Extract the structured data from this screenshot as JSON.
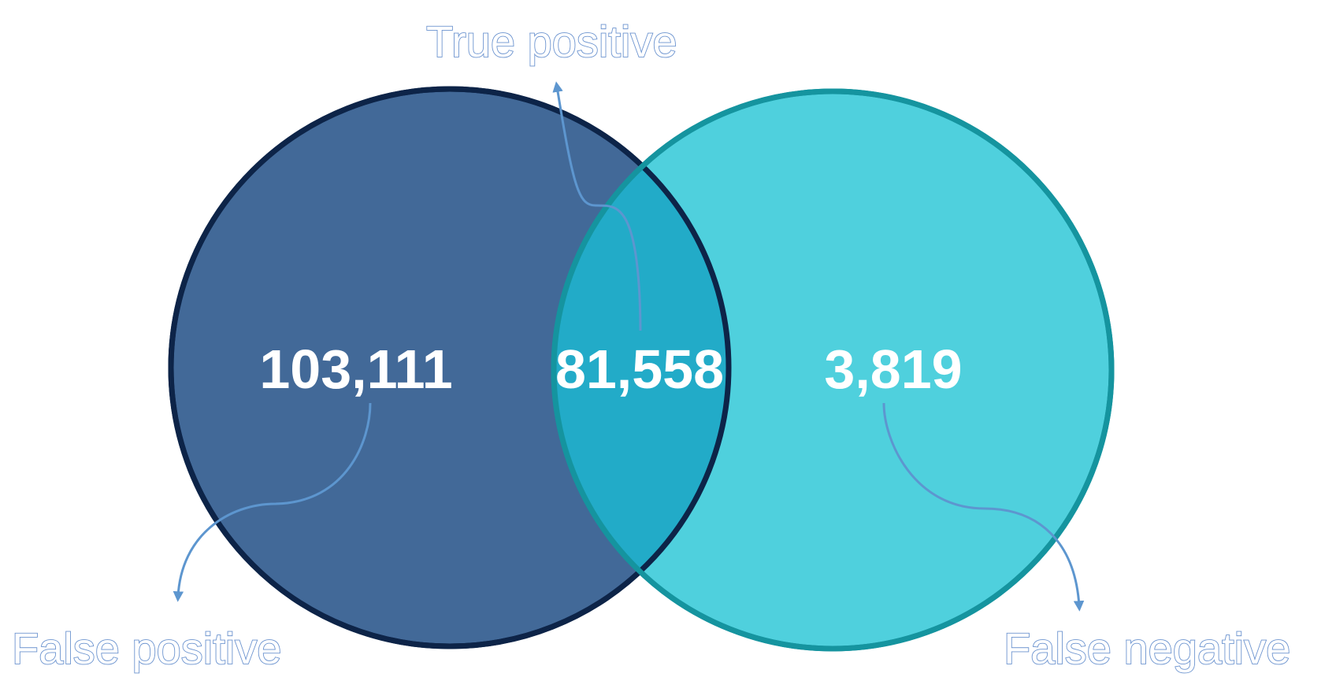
{
  "venn": {
    "left_set": {
      "count": "103,111",
      "callout": "False positive",
      "fill_color": "#426998",
      "stroke_color": "#0d2448"
    },
    "intersection": {
      "count": "81,558",
      "callout": "True positive",
      "fill_color": "#22abc8"
    },
    "right_set": {
      "count": "3,819",
      "callout": "False negative",
      "fill_color": "#4fd0dd",
      "stroke_color": "#15949f"
    }
  },
  "colors": {
    "callout_outline": "#6b93cf",
    "connector": "#5d96cf",
    "count_text": "#ffffff",
    "background": "#ffffff"
  }
}
